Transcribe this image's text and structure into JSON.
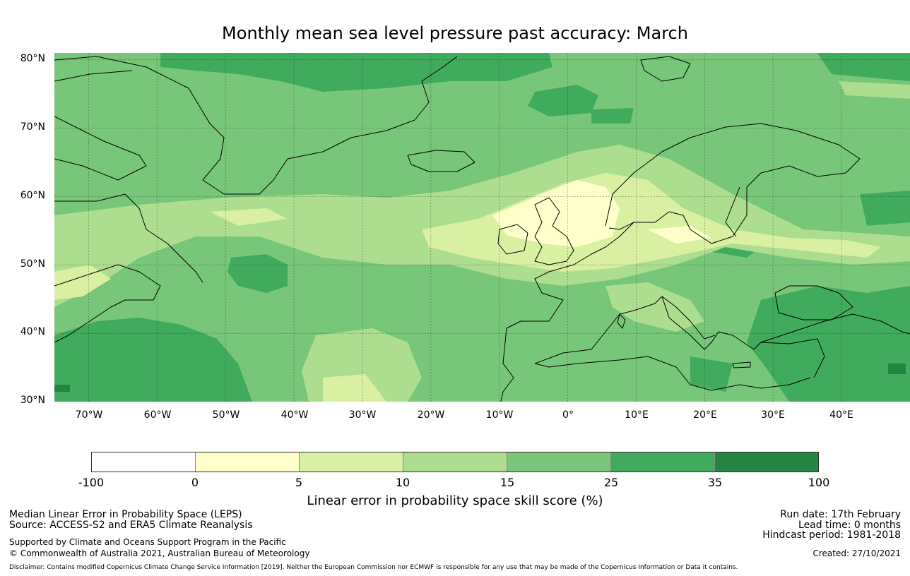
{
  "title": "Monthly mean sea level pressure past accuracy: March",
  "map": {
    "lat_ticks": [
      "80°N",
      "70°N",
      "60°N",
      "50°N",
      "40°N",
      "30°N"
    ],
    "lon_ticks": [
      "70°W",
      "60°W",
      "50°W",
      "40°W",
      "30°W",
      "20°W",
      "10°W",
      "0°",
      "10°E",
      "20°E",
      "30°E",
      "40°E"
    ],
    "lat_range": [
      30,
      81
    ],
    "lon_range": [
      -75,
      50
    ]
  },
  "colorbar": {
    "ticks": [
      "-100",
      "0",
      "5",
      "10",
      "15",
      "25",
      "35",
      "100"
    ],
    "colors": [
      "#ffffff",
      "#ffffcc",
      "#d9f0a3",
      "#addd8e",
      "#78c679",
      "#41ab5d",
      "#238443"
    ],
    "label": "Linear error in probability space skill score (%)"
  },
  "footer": {
    "left_line1": "Median Linear Error in Probability Space (LEPS)",
    "left_line2": "Source: ACCESS-S2 and ERA5 Climate Reanalysis",
    "left_line3": "Supported by Climate and Oceans Support Program in the Pacific",
    "left_line4": "© Commonwealth of Australia 2021, Australian Bureau of Meteorology",
    "right_line1": "Run date: 17th February",
    "right_line2": "Lead time: 0 months",
    "right_line3": "Hindcast period: 1981-2018",
    "right_line4": "Created: 27/10/2021",
    "disclaimer": "Disclaimer: Contains modified Copernicus Climate Change Service Information [2019]. Neither the European Commission nor ECMWF is responsible for any use that may be made of the Copernicus Information or Data it contains."
  }
}
